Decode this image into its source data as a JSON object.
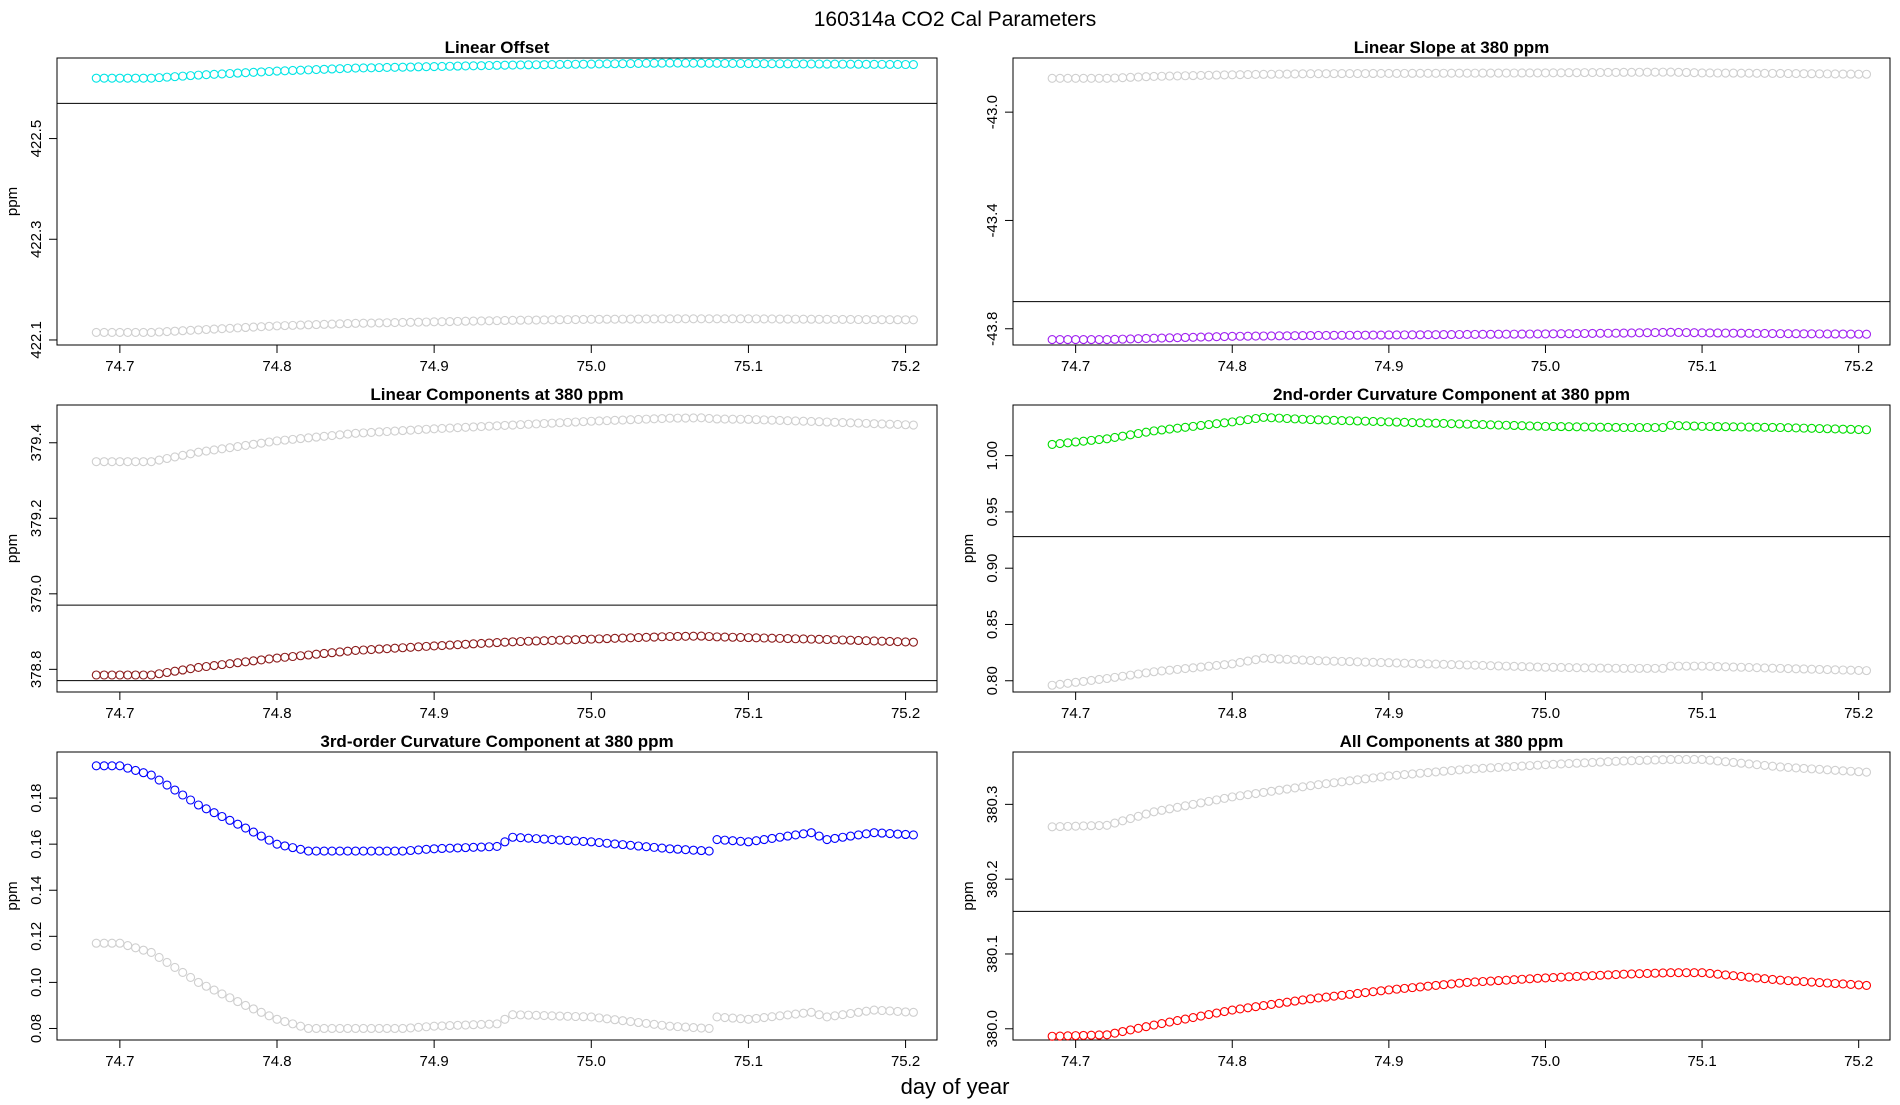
{
  "figure": {
    "title": "160314a   CO2 Cal Parameters",
    "xlabel": "day of year"
  },
  "chart_data": [
    {
      "type": "scatter",
      "title": "Linear Offset",
      "ylabel": "ppm",
      "xlim": [
        74.66,
        75.22
      ],
      "ylim": [
        422.09,
        422.66
      ],
      "xticks": [
        74.7,
        74.8,
        74.9,
        75.0,
        75.1,
        75.2
      ],
      "yticks": [
        422.1,
        422.3,
        422.5
      ],
      "ytick_labels": [
        "422.1",
        "422.3",
        "422.5"
      ],
      "hlines": [
        422.57
      ],
      "series": [
        {
          "color": "#00e5e5",
          "points": [
            [
              74.685,
              422.62
            ],
            [
              74.72,
              422.62
            ],
            [
              74.75,
              422.626
            ],
            [
              74.8,
              422.634
            ],
            [
              74.85,
              422.64
            ],
            [
              74.9,
              422.643
            ],
            [
              74.95,
              422.646
            ],
            [
              75.0,
              422.648
            ],
            [
              75.05,
              422.65
            ],
            [
              75.1,
              422.649
            ],
            [
              75.15,
              422.648
            ],
            [
              75.205,
              422.647
            ]
          ]
        },
        {
          "color": "#cfcfcf",
          "points": [
            [
              74.685,
              422.115
            ],
            [
              74.72,
              422.115
            ],
            [
              74.75,
              422.12
            ],
            [
              74.8,
              422.128
            ],
            [
              74.85,
              422.133
            ],
            [
              74.9,
              422.136
            ],
            [
              74.95,
              422.139
            ],
            [
              75.0,
              422.141
            ],
            [
              75.05,
              422.142
            ],
            [
              75.1,
              422.142
            ],
            [
              75.15,
              422.141
            ],
            [
              75.205,
              422.14
            ]
          ]
        }
      ]
    },
    {
      "type": "scatter",
      "title": "Linear Slope at 380 ppm",
      "ylabel": "",
      "xlim": [
        74.66,
        75.22
      ],
      "ylim": [
        -43.86,
        -42.8
      ],
      "xticks": [
        74.7,
        74.8,
        74.9,
        75.0,
        75.1,
        75.2
      ],
      "yticks": [
        -43.8,
        -43.4,
        -43.0
      ],
      "ytick_labels": [
        "-43.8",
        "-43.4",
        "-43.0"
      ],
      "hlines": [
        -43.7
      ],
      "series": [
        {
          "color": "#cfcfcf",
          "points": [
            [
              74.685,
              -42.875
            ],
            [
              74.72,
              -42.875
            ],
            [
              74.75,
              -42.868
            ],
            [
              74.8,
              -42.862
            ],
            [
              74.85,
              -42.858
            ],
            [
              74.9,
              -42.857
            ],
            [
              74.95,
              -42.856
            ],
            [
              75.0,
              -42.855
            ],
            [
              75.05,
              -42.853
            ],
            [
              75.08,
              -42.852
            ],
            [
              75.1,
              -42.855
            ],
            [
              75.15,
              -42.857
            ],
            [
              75.205,
              -42.86
            ]
          ]
        },
        {
          "color": "#a020f0",
          "points": [
            [
              74.685,
              -43.84
            ],
            [
              74.72,
              -43.84
            ],
            [
              74.75,
              -43.835
            ],
            [
              74.8,
              -43.828
            ],
            [
              74.85,
              -43.825
            ],
            [
              74.9,
              -43.823
            ],
            [
              74.95,
              -43.821
            ],
            [
              75.0,
              -43.819
            ],
            [
              75.05,
              -43.816
            ],
            [
              75.08,
              -43.813
            ],
            [
              75.1,
              -43.815
            ],
            [
              75.15,
              -43.818
            ],
            [
              75.205,
              -43.82
            ]
          ]
        }
      ]
    },
    {
      "type": "scatter",
      "title": "Linear Components at 380 ppm",
      "ylabel": "ppm",
      "xlim": [
        74.66,
        75.22
      ],
      "ylim": [
        378.74,
        379.5
      ],
      "xticks": [
        74.7,
        74.8,
        74.9,
        75.0,
        75.1,
        75.2
      ],
      "yticks": [
        378.8,
        379.0,
        379.2,
        379.4
      ],
      "ytick_labels": [
        "378.8",
        "379.0",
        "379.2",
        "379.4"
      ],
      "hlines": [
        378.97,
        378.77
      ],
      "series": [
        {
          "color": "#cfcfcf",
          "points": [
            [
              74.685,
              379.35
            ],
            [
              74.72,
              379.35
            ],
            [
              74.75,
              379.375
            ],
            [
              74.8,
              379.405
            ],
            [
              74.85,
              379.425
            ],
            [
              74.9,
              379.437
            ],
            [
              74.95,
              379.447
            ],
            [
              75.0,
              379.457
            ],
            [
              75.05,
              379.465
            ],
            [
              75.07,
              379.466
            ],
            [
              75.08,
              379.463
            ],
            [
              75.1,
              379.462
            ],
            [
              75.15,
              379.455
            ],
            [
              75.205,
              379.447
            ]
          ]
        },
        {
          "color": "#8b1a1a",
          "points": [
            [
              74.685,
              378.785
            ],
            [
              74.72,
              378.785
            ],
            [
              74.75,
              378.805
            ],
            [
              74.8,
              378.83
            ],
            [
              74.85,
              378.85
            ],
            [
              74.9,
              378.862
            ],
            [
              74.95,
              378.873
            ],
            [
              75.0,
              378.88
            ],
            [
              75.05,
              378.887
            ],
            [
              75.07,
              378.888
            ],
            [
              75.08,
              378.886
            ],
            [
              75.1,
              378.884
            ],
            [
              75.15,
              378.879
            ],
            [
              75.205,
              378.872
            ]
          ]
        }
      ]
    },
    {
      "type": "scatter",
      "title": "2nd-order Curvature Component at 380 ppm",
      "ylabel": "ppm",
      "xlim": [
        74.66,
        75.22
      ],
      "ylim": [
        0.79,
        1.045
      ],
      "xticks": [
        74.7,
        74.8,
        74.9,
        75.0,
        75.1,
        75.2
      ],
      "yticks": [
        0.8,
        0.85,
        0.9,
        0.95,
        1.0
      ],
      "ytick_labels": [
        "0.80",
        "0.85",
        "0.90",
        "0.95",
        "1.00"
      ],
      "hlines": [
        0.928
      ],
      "series": [
        {
          "color": "#00dd00",
          "points": [
            [
              74.685,
              1.01
            ],
            [
              74.72,
              1.015
            ],
            [
              74.75,
              1.022
            ],
            [
              74.8,
              1.03
            ],
            [
              74.82,
              1.034
            ],
            [
              74.85,
              1.032
            ],
            [
              74.9,
              1.03
            ],
            [
              74.95,
              1.028
            ],
            [
              75.0,
              1.026
            ],
            [
              75.05,
              1.025
            ],
            [
              75.075,
              1.025
            ],
            [
              75.08,
              1.027
            ],
            [
              75.1,
              1.026
            ],
            [
              75.15,
              1.025
            ],
            [
              75.205,
              1.023
            ]
          ]
        },
        {
          "color": "#cfcfcf",
          "points": [
            [
              74.685,
              0.796
            ],
            [
              74.72,
              0.802
            ],
            [
              74.75,
              0.808
            ],
            [
              74.8,
              0.815
            ],
            [
              74.82,
              0.82
            ],
            [
              74.85,
              0.818
            ],
            [
              74.9,
              0.816
            ],
            [
              74.95,
              0.814
            ],
            [
              75.0,
              0.812
            ],
            [
              75.05,
              0.811
            ],
            [
              75.075,
              0.811
            ],
            [
              75.08,
              0.813
            ],
            [
              75.1,
              0.813
            ],
            [
              75.15,
              0.811
            ],
            [
              75.205,
              0.809
            ]
          ]
        }
      ]
    },
    {
      "type": "scatter",
      "title": "3rd-order Curvature Component at 380 ppm",
      "ylabel": "ppm",
      "xlim": [
        74.66,
        75.22
      ],
      "ylim": [
        0.075,
        0.2
      ],
      "xticks": [
        74.7,
        74.8,
        74.9,
        75.0,
        75.1,
        75.2
      ],
      "yticks": [
        0.08,
        0.1,
        0.12,
        0.14,
        0.16,
        0.18
      ],
      "ytick_labels": [
        "0.08",
        "0.10",
        "0.12",
        "0.14",
        "0.16",
        "0.18"
      ],
      "hlines": [],
      "series": [
        {
          "color": "#0000ff",
          "points": [
            [
              74.685,
              0.194
            ],
            [
              74.7,
              0.194
            ],
            [
              74.72,
              0.19
            ],
            [
              74.75,
              0.177
            ],
            [
              74.78,
              0.167
            ],
            [
              74.8,
              0.16
            ],
            [
              74.82,
              0.157
            ],
            [
              74.85,
              0.157
            ],
            [
              74.88,
              0.157
            ],
            [
              74.9,
              0.158
            ],
            [
              74.94,
              0.159
            ],
            [
              74.95,
              0.163
            ],
            [
              75.0,
              0.161
            ],
            [
              75.05,
              0.158
            ],
            [
              75.075,
              0.157
            ],
            [
              75.08,
              0.162
            ],
            [
              75.1,
              0.161
            ],
            [
              75.14,
              0.165
            ],
            [
              75.15,
              0.162
            ],
            [
              75.18,
              0.165
            ],
            [
              75.205,
              0.164
            ]
          ]
        },
        {
          "color": "#cfcfcf",
          "points": [
            [
              74.685,
              0.117
            ],
            [
              74.7,
              0.117
            ],
            [
              74.72,
              0.113
            ],
            [
              74.75,
              0.1
            ],
            [
              74.78,
              0.09
            ],
            [
              74.8,
              0.084
            ],
            [
              74.82,
              0.08
            ],
            [
              74.85,
              0.08
            ],
            [
              74.88,
              0.08
            ],
            [
              74.9,
              0.081
            ],
            [
              74.94,
              0.082
            ],
            [
              74.95,
              0.086
            ],
            [
              75.0,
              0.085
            ],
            [
              75.05,
              0.081
            ],
            [
              75.075,
              0.08
            ],
            [
              75.08,
              0.085
            ],
            [
              75.1,
              0.084
            ],
            [
              75.14,
              0.087
            ],
            [
              75.15,
              0.085
            ],
            [
              75.18,
              0.088
            ],
            [
              75.205,
              0.087
            ]
          ]
        }
      ]
    },
    {
      "type": "scatter",
      "title": "All Components at 380 ppm",
      "ylabel": "ppm",
      "xlim": [
        74.66,
        75.22
      ],
      "ylim": [
        379.985,
        380.37
      ],
      "xticks": [
        74.7,
        74.8,
        74.9,
        75.0,
        75.1,
        75.2
      ],
      "yticks": [
        380.0,
        380.1,
        380.2,
        380.3
      ],
      "ytick_labels": [
        "380.0",
        "380.1",
        "380.2",
        "380.3"
      ],
      "hlines": [
        380.157
      ],
      "series": [
        {
          "color": "#cfcfcf",
          "points": [
            [
              74.685,
              380.27
            ],
            [
              74.72,
              380.272
            ],
            [
              74.75,
              380.29
            ],
            [
              74.8,
              380.31
            ],
            [
              74.85,
              380.325
            ],
            [
              74.9,
              380.338
            ],
            [
              74.95,
              380.347
            ],
            [
              75.0,
              380.353
            ],
            [
              75.05,
              380.358
            ],
            [
              75.08,
              380.36
            ],
            [
              75.1,
              380.36
            ],
            [
              75.15,
              380.35
            ],
            [
              75.205,
              380.343
            ]
          ]
        },
        {
          "color": "#ff0000",
          "points": [
            [
              74.685,
              379.99
            ],
            [
              74.72,
              379.992
            ],
            [
              74.75,
              380.005
            ],
            [
              74.8,
              380.025
            ],
            [
              74.85,
              380.04
            ],
            [
              74.9,
              380.052
            ],
            [
              74.95,
              380.062
            ],
            [
              75.0,
              380.068
            ],
            [
              75.05,
              380.073
            ],
            [
              75.08,
              380.075
            ],
            [
              75.1,
              380.075
            ],
            [
              75.15,
              380.065
            ],
            [
              75.205,
              380.058
            ]
          ]
        }
      ]
    }
  ]
}
